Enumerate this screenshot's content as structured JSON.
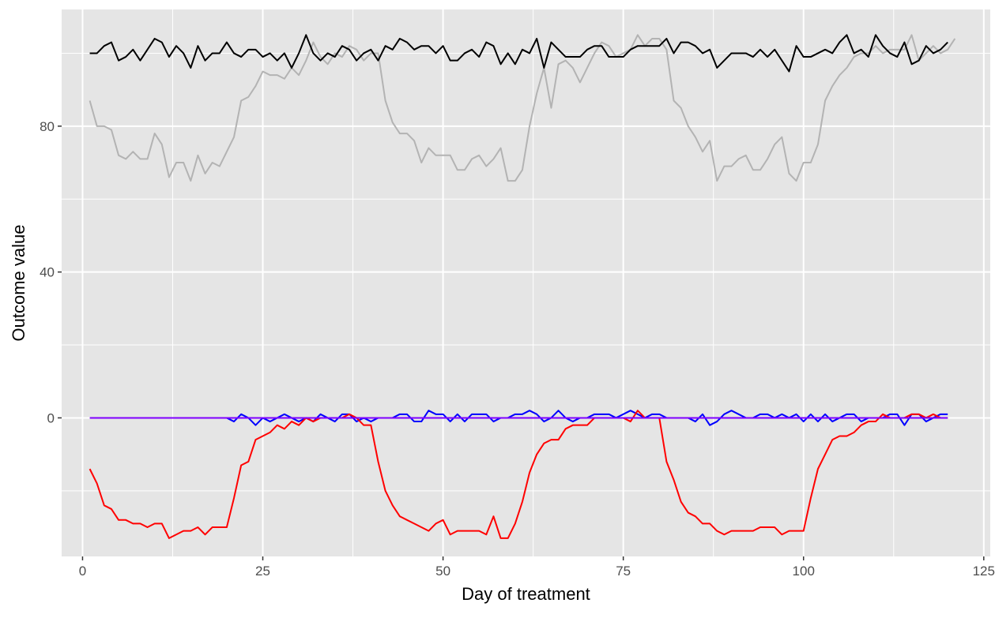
{
  "chart_data": {
    "type": "line",
    "title": "",
    "xlabel": "Day of treatment",
    "ylabel": "Outcome value",
    "xlim": [
      -2.9,
      125.9
    ],
    "ylim": [
      -38,
      112
    ],
    "x_ticks": [
      0,
      25,
      50,
      75,
      100,
      125
    ],
    "y_ticks": [
      0,
      40,
      80
    ],
    "grid": true,
    "legend": "none",
    "background": "#E5E5E5",
    "grid_color": "#FFFFFF",
    "series": [
      {
        "color": "#B3B3B3",
        "x_start": 1,
        "values": [
          87,
          80,
          80,
          79,
          72,
          71,
          73,
          71,
          71,
          78,
          75,
          66,
          70,
          70,
          65,
          72,
          67,
          70,
          69,
          73,
          77,
          87,
          88,
          91,
          95,
          94,
          94,
          93,
          96,
          94,
          98,
          103,
          99,
          97,
          100,
          99,
          102,
          101,
          98,
          100,
          100,
          87,
          81,
          78,
          78,
          76,
          70,
          74,
          72,
          72,
          72,
          68,
          68,
          71,
          72,
          69,
          71,
          74,
          65,
          65,
          68,
          80,
          89,
          96,
          85,
          97,
          98,
          96,
          92,
          96,
          100,
          103,
          102,
          99,
          100,
          101,
          105,
          102,
          104,
          104,
          101,
          87,
          85,
          80,
          77,
          73,
          76,
          65,
          69,
          69,
          71,
          72,
          68,
          68,
          71,
          75,
          77,
          67,
          65,
          70,
          70,
          75,
          87,
          91,
          94,
          96,
          99,
          100,
          100,
          102,
          100,
          101,
          101,
          101,
          105,
          98,
          100,
          102,
          100,
          101,
          104
        ]
      },
      {
        "color": "#000000",
        "x_start": 1,
        "values": [
          100,
          100,
          102,
          103,
          98,
          99,
          101,
          98,
          101,
          104,
          103,
          99,
          102,
          100,
          96,
          102,
          98,
          100,
          100,
          103,
          100,
          99,
          101,
          101,
          99,
          100,
          98,
          100,
          96,
          100,
          105,
          100,
          98,
          100,
          99,
          102,
          101,
          98,
          100,
          101,
          98,
          102,
          101,
          104,
          103,
          101,
          102,
          102,
          100,
          102,
          98,
          98,
          100,
          101,
          99,
          103,
          102,
          97,
          100,
          97,
          101,
          100,
          104,
          96,
          103,
          101,
          99,
          99,
          99,
          101,
          102,
          102,
          99,
          99,
          99,
          101,
          102,
          102,
          102,
          102,
          104,
          100,
          103,
          103,
          102,
          100,
          101,
          96,
          98,
          100,
          100,
          100,
          99,
          101,
          99,
          101,
          98,
          95,
          102,
          99,
          99,
          100,
          101,
          100,
          103,
          105,
          100,
          101,
          99,
          105,
          102,
          100,
          99,
          103,
          97,
          98,
          102,
          100,
          101,
          103
        ]
      },
      {
        "color": "#0000FF",
        "x_start": 20,
        "values": [
          0,
          -1,
          1,
          0,
          -2,
          0,
          -1,
          0,
          1,
          0,
          -1,
          0,
          -1,
          1,
          0,
          -1,
          1,
          1,
          -1,
          0,
          -1,
          0,
          0,
          0,
          1,
          1,
          -1,
          -1,
          2,
          1,
          1,
          -1,
          1,
          -1,
          1,
          1,
          1,
          -1,
          0,
          0,
          1,
          1,
          2,
          1,
          -1,
          0,
          2,
          0,
          -1,
          0,
          0,
          1,
          1,
          1,
          0,
          1,
          2,
          1,
          0,
          1,
          1,
          0,
          0,
          0,
          0,
          -1,
          1,
          -2,
          -1,
          1,
          2,
          1,
          0,
          0,
          1,
          1,
          0,
          1,
          0,
          1,
          -1,
          1,
          -1,
          1,
          -1,
          0,
          1,
          1,
          -1,
          0,
          0,
          0,
          1,
          1,
          -2,
          1,
          1,
          -1,
          0,
          1,
          1
        ]
      },
      {
        "color": "#FF0000",
        "x_start": 1,
        "values": [
          -14,
          -18,
          -24,
          -25,
          -28,
          -28,
          -29,
          -29,
          -30,
          -29,
          -29,
          -33,
          -32,
          -31,
          -31,
          -30,
          -32,
          -30,
          -30,
          -30,
          -22,
          -13,
          -12,
          -6,
          -5,
          -4,
          -2,
          -3,
          -1,
          -2,
          0,
          -1,
          0,
          0,
          0,
          0,
          1,
          0,
          -2,
          -2,
          -12,
          -20,
          -24,
          -27,
          -28,
          -29,
          -30,
          -31,
          -29,
          -28,
          -32,
          -31,
          -31,
          -31,
          -31,
          -32,
          -27,
          -33,
          -33,
          -29,
          -23,
          -15,
          -10,
          -7,
          -6,
          -6,
          -3,
          -2,
          -2,
          -2,
          0,
          0,
          0,
          0,
          0,
          -1,
          2,
          0,
          0,
          0,
          -12,
          -17,
          -23,
          -26,
          -27,
          -29,
          -29,
          -31,
          -32,
          -31,
          -31,
          -31,
          -31,
          -30,
          -30,
          -30,
          -32,
          -31,
          -31,
          -31,
          -22,
          -14,
          -10,
          -6,
          -5,
          -5,
          -4,
          -2,
          -1,
          -1,
          1,
          0,
          0,
          0,
          1,
          1,
          0,
          1,
          0,
          0
        ]
      },
      {
        "color": "#7F00FF",
        "x_start": 1,
        "values": [
          0,
          0,
          0,
          0,
          0,
          0,
          0,
          0,
          0,
          0,
          0,
          0,
          0,
          0,
          0,
          0,
          0,
          0,
          0,
          0,
          0,
          0,
          0,
          0,
          0,
          0,
          0,
          0,
          0,
          0,
          0,
          0,
          0,
          0,
          0,
          0,
          0,
          0,
          0,
          0,
          0,
          0,
          0,
          0,
          0,
          0,
          0,
          0,
          0,
          0,
          0,
          0,
          0,
          0,
          0,
          0,
          0,
          0,
          0,
          0,
          0,
          0,
          0,
          0,
          0,
          0,
          0,
          0,
          0,
          0,
          0,
          0,
          0,
          0,
          0,
          0,
          0,
          0,
          0,
          0,
          0,
          0,
          0,
          0,
          0,
          0,
          0,
          0,
          0,
          0,
          0,
          0,
          0,
          0,
          0,
          0,
          0,
          0,
          0,
          0,
          0,
          0,
          0,
          0,
          0,
          0,
          0,
          0,
          0,
          0,
          0,
          0,
          0,
          0,
          0,
          0,
          0,
          0,
          0,
          0
        ]
      }
    ]
  }
}
